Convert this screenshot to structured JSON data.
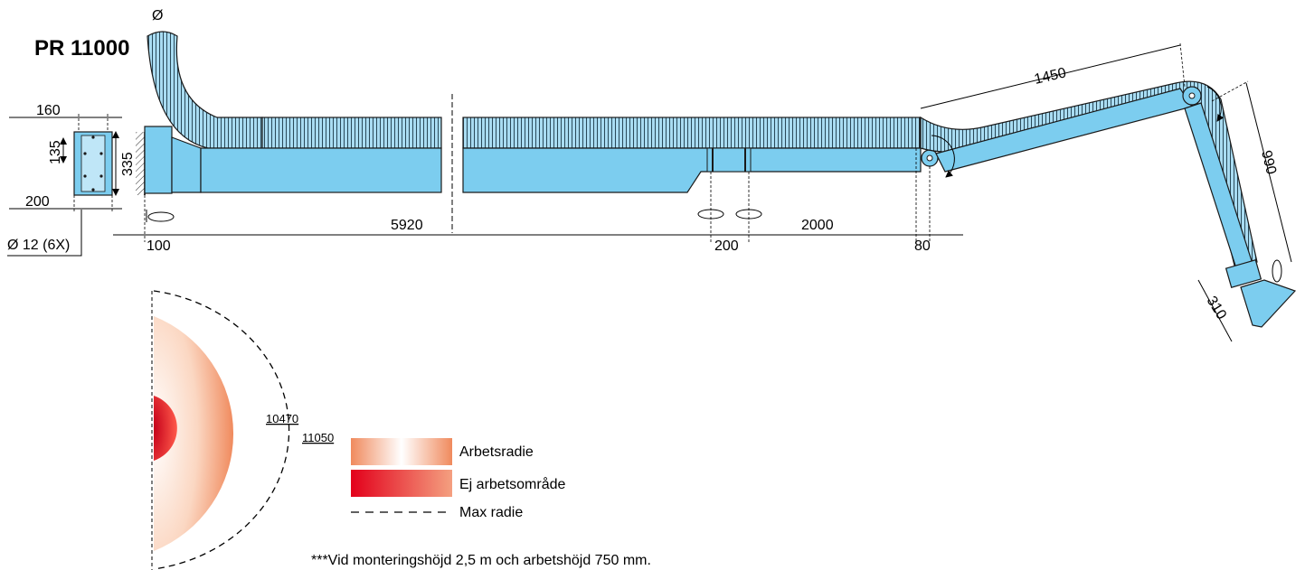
{
  "title": "PR 11000",
  "colors": {
    "arm_blue": "#7ccdef",
    "hose_blue": "#a9dcf2",
    "outline": "#1a1a1a",
    "work_radius_orange": "#f08a5d",
    "no_work_red": "#e3001b"
  },
  "dimensions": {
    "diameter_symbol": "Ø",
    "mount_width": "160",
    "mount_inner": "135",
    "mount_height": "335",
    "mount_base": "200",
    "bolt_holes": "Ø 12 (6X)",
    "offset_start": "100",
    "main_length": "5920",
    "bracket_spacing": "200",
    "segment_length": "2000",
    "joint_offset": "80",
    "upper_arm": "1450",
    "lower_arm": "990",
    "hood": "310"
  },
  "radius": {
    "work_radius": "10470",
    "max_radius": "11050"
  },
  "legend": [
    {
      "key": "work-radius",
      "label": "Arbetsradie"
    },
    {
      "key": "no-work-area",
      "label": "Ej arbetsområde"
    },
    {
      "key": "max-radius",
      "label": "Max radie"
    }
  ],
  "footnote": "***Vid monteringshöjd 2,5 m och arbetshöjd 750 mm."
}
